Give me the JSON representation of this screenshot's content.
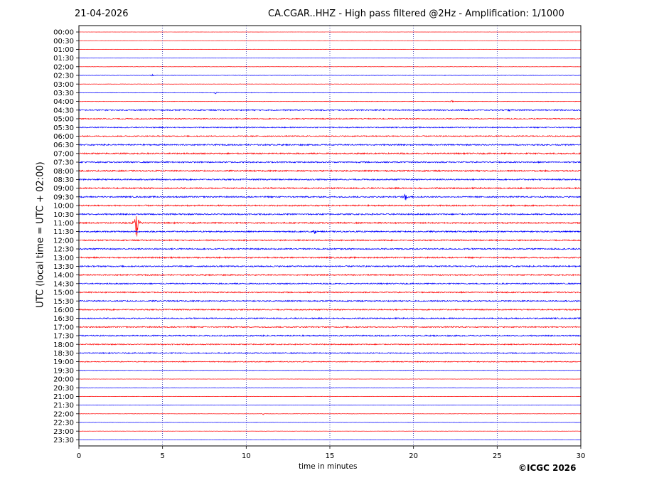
{
  "header": {
    "date": "21-04-2026",
    "title": "CA.CGAR..HHZ - High pass filtered @2Hz - Amplification: 1/1000"
  },
  "footer": {
    "copyright": "©ICGC 2026"
  },
  "chart_data": {
    "type": "line",
    "subtype": "helicorder",
    "title": "CA.CGAR..HHZ - High pass filtered @2Hz - Amplification: 1/1000",
    "date": "21-04-2026",
    "xlabel": "time in minutes",
    "ylabel": "UTC (local time = UTC + 02:00)",
    "xlim": [
      0,
      30
    ],
    "xticks": [
      0,
      5,
      10,
      15,
      20,
      25,
      30
    ],
    "grid": "vertical dotted at x ticks",
    "colors": {
      "a": "#ff0000",
      "b": "#0000ff"
    },
    "rows": [
      {
        "label": "00:00",
        "color": "#ff0000",
        "amp": 0.1
      },
      {
        "label": "00:30",
        "color": "#ff0000",
        "amp": 0.1
      },
      {
        "label": "01:00",
        "color": "#ff0000",
        "amp": 0.15
      },
      {
        "label": "01:30",
        "color": "#0000ff",
        "amp": 0.15
      },
      {
        "label": "02:00",
        "color": "#ff0000",
        "amp": 0.2
      },
      {
        "label": "02:30",
        "color": "#0000ff",
        "amp": 0.3
      },
      {
        "label": "03:00",
        "color": "#ff0000",
        "amp": 0.2
      },
      {
        "label": "03:30",
        "color": "#0000ff",
        "amp": 0.3
      },
      {
        "label": "04:00",
        "color": "#ff0000",
        "amp": 0.3
      },
      {
        "label": "04:30",
        "color": "#0000ff",
        "amp": 0.8
      },
      {
        "label": "05:00",
        "color": "#ff0000",
        "amp": 0.7
      },
      {
        "label": "05:30",
        "color": "#0000ff",
        "amp": 0.7
      },
      {
        "label": "06:00",
        "color": "#ff0000",
        "amp": 0.7
      },
      {
        "label": "06:30",
        "color": "#0000ff",
        "amp": 0.9
      },
      {
        "label": "07:00",
        "color": "#ff0000",
        "amp": 0.9
      },
      {
        "label": "07:30",
        "color": "#0000ff",
        "amp": 0.9
      },
      {
        "label": "08:00",
        "color": "#ff0000",
        "amp": 0.9
      },
      {
        "label": "08:30",
        "color": "#0000ff",
        "amp": 0.9
      },
      {
        "label": "09:00",
        "color": "#ff0000",
        "amp": 0.9
      },
      {
        "label": "09:30",
        "color": "#0000ff",
        "amp": 0.9
      },
      {
        "label": "10:00",
        "color": "#ff0000",
        "amp": 0.9
      },
      {
        "label": "10:30",
        "color": "#0000ff",
        "amp": 0.9
      },
      {
        "label": "11:00",
        "color": "#ff0000",
        "amp": 0.9
      },
      {
        "label": "11:30",
        "color": "#0000ff",
        "amp": 0.9
      },
      {
        "label": "12:00",
        "color": "#ff0000",
        "amp": 0.8
      },
      {
        "label": "12:30",
        "color": "#0000ff",
        "amp": 0.9
      },
      {
        "label": "13:00",
        "color": "#ff0000",
        "amp": 0.9
      },
      {
        "label": "13:30",
        "color": "#0000ff",
        "amp": 0.9
      },
      {
        "label": "14:00",
        "color": "#ff0000",
        "amp": 0.8
      },
      {
        "label": "14:30",
        "color": "#0000ff",
        "amp": 0.8
      },
      {
        "label": "15:00",
        "color": "#ff0000",
        "amp": 0.8
      },
      {
        "label": "15:30",
        "color": "#0000ff",
        "amp": 0.8
      },
      {
        "label": "16:00",
        "color": "#ff0000",
        "amp": 0.8
      },
      {
        "label": "16:30",
        "color": "#0000ff",
        "amp": 0.8
      },
      {
        "label": "17:00",
        "color": "#ff0000",
        "amp": 0.8
      },
      {
        "label": "17:30",
        "color": "#0000ff",
        "amp": 0.8
      },
      {
        "label": "18:00",
        "color": "#ff0000",
        "amp": 0.7
      },
      {
        "label": "18:30",
        "color": "#0000ff",
        "amp": 0.7
      },
      {
        "label": "19:00",
        "color": "#ff0000",
        "amp": 0.6
      },
      {
        "label": "19:30",
        "color": "#0000ff",
        "amp": 0.3
      },
      {
        "label": "20:00",
        "color": "#ff0000",
        "amp": 0.2
      },
      {
        "label": "20:30",
        "color": "#0000ff",
        "amp": 0.2
      },
      {
        "label": "21:00",
        "color": "#ff0000",
        "amp": 0.2
      },
      {
        "label": "21:30",
        "color": "#0000ff",
        "amp": 0.2
      },
      {
        "label": "22:00",
        "color": "#ff0000",
        "amp": 0.2
      },
      {
        "label": "22:30",
        "color": "#0000ff",
        "amp": 0.2
      },
      {
        "label": "23:00",
        "color": "#ff0000",
        "amp": 0.15
      },
      {
        "label": "23:30",
        "color": "#0000ff",
        "amp": 0.15
      }
    ],
    "events": [
      {
        "row": "02:30",
        "minute": 4.4,
        "amp": 1.5
      },
      {
        "row": "03:30",
        "minute": 8.2,
        "amp": 2.0
      },
      {
        "row": "04:00",
        "minute": 22.3,
        "amp": 2.0
      },
      {
        "row": "04:30",
        "minute": 25.7,
        "amp": 2.0
      },
      {
        "row": "09:30",
        "minute": 19.5,
        "amp": 8.0
      },
      {
        "row": "11:00",
        "minute": 3.45,
        "amp": 30.0
      },
      {
        "row": "11:30",
        "minute": 14.1,
        "amp": 3.0
      },
      {
        "row": "13:30",
        "minute": 13.9,
        "amp": 1.5
      },
      {
        "row": "17:30",
        "minute": 16.5,
        "amp": 1.5
      },
      {
        "row": "22:00",
        "minute": 11.0,
        "amp": 1.5
      }
    ]
  }
}
